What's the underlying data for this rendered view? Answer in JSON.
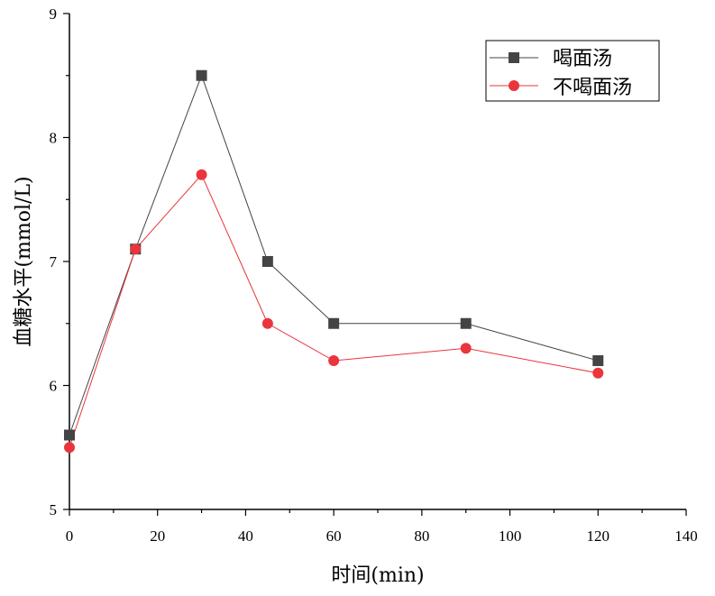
{
  "chart_data": {
    "type": "line",
    "xlabel": "时间(min)",
    "ylabel": "血糖水平(mmol/L)",
    "xlim": [
      0,
      140
    ],
    "ylim": [
      5,
      9
    ],
    "xticks": [
      0,
      20,
      40,
      60,
      80,
      100,
      120,
      140
    ],
    "yticks": [
      5,
      6,
      7,
      8,
      9
    ],
    "legend_position": "top-right",
    "grid": false,
    "series": [
      {
        "name": "喝面汤",
        "color": "#444444",
        "marker": "square",
        "x": [
          0,
          15,
          30,
          45,
          60,
          90,
          120
        ],
        "y": [
          5.6,
          7.1,
          8.5,
          7.0,
          6.5,
          6.5,
          6.2
        ]
      },
      {
        "name": "不喝面汤",
        "color": "#e8363c",
        "marker": "circle",
        "x": [
          0,
          15,
          30,
          45,
          60,
          90,
          120
        ],
        "y": [
          5.5,
          7.1,
          7.7,
          6.5,
          6.2,
          6.3,
          6.1
        ]
      }
    ]
  }
}
